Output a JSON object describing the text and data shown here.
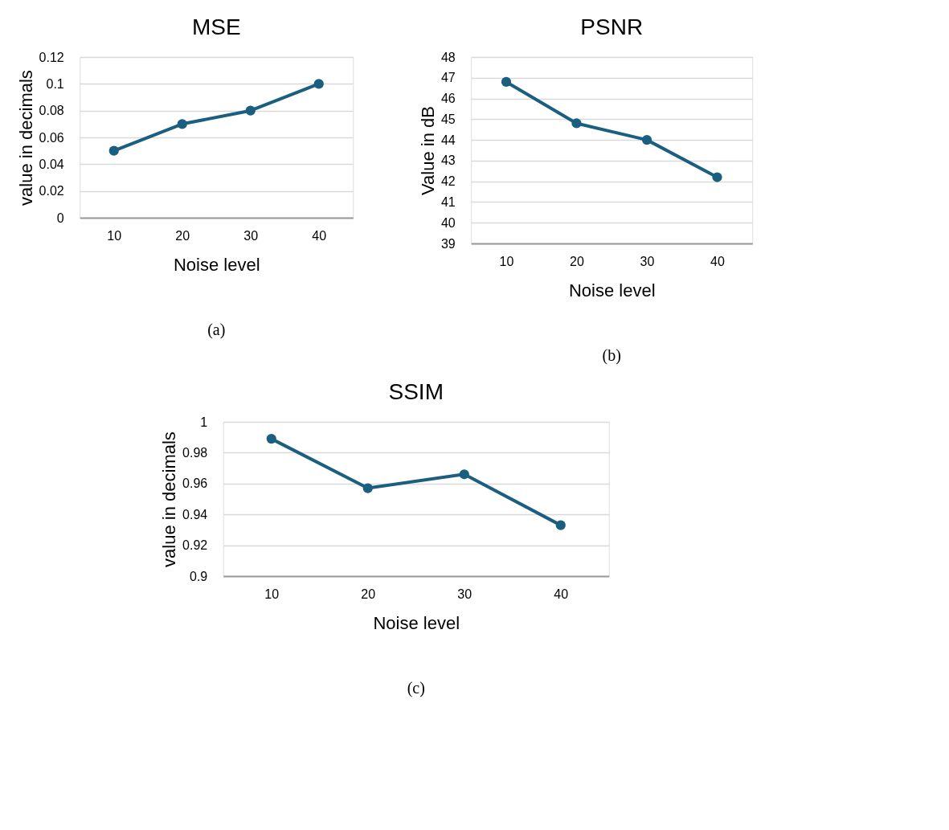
{
  "chart_data": [
    {
      "type": "line",
      "title": "MSE",
      "xlabel": "Noise level",
      "ylabel": "value in decimals",
      "categories": [
        "10",
        "20",
        "30",
        "40"
      ],
      "series": [
        {
          "color": "#1b5f80",
          "values": [
            0.05,
            0.07,
            0.08,
            0.1
          ]
        }
      ],
      "ylim": [
        0,
        0.12
      ],
      "yticks": [
        0,
        0.02,
        0.04,
        0.06,
        0.08,
        0.1,
        0.12
      ],
      "grid": "y",
      "marker": "circle",
      "legend": false,
      "annotations": [
        "(a)"
      ]
    },
    {
      "type": "line",
      "title": "PSNR",
      "xlabel": "Noise level",
      "ylabel": "Value in dB",
      "categories": [
        "10",
        "20",
        "30",
        "40"
      ],
      "series": [
        {
          "color": "#1b5f80",
          "values": [
            46.8,
            44.8,
            44.0,
            42.2
          ]
        }
      ],
      "ylim": [
        39,
        48
      ],
      "yticks": [
        39,
        40,
        41,
        42,
        43,
        44,
        45,
        46,
        47,
        48
      ],
      "grid": "y",
      "marker": "circle",
      "legend": false,
      "annotations": [
        "(b)"
      ]
    },
    {
      "type": "line",
      "title": "SSIM",
      "xlabel": "Noise level",
      "ylabel": "value in decimals",
      "categories": [
        "10",
        "20",
        "30",
        "40"
      ],
      "series": [
        {
          "color": "#1b5f80",
          "values": [
            0.989,
            0.957,
            0.966,
            0.933
          ]
        }
      ],
      "ylim": [
        0.9,
        1
      ],
      "yticks": [
        0.9,
        0.92,
        0.94,
        0.96,
        0.98,
        1
      ],
      "grid": "y",
      "marker": "circle",
      "legend": false,
      "annotations": [
        "(c)"
      ]
    }
  ]
}
